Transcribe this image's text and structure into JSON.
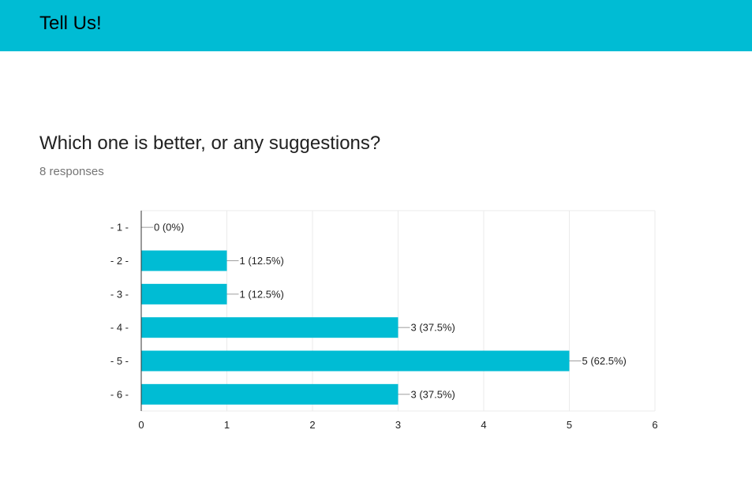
{
  "header": {
    "title": "Tell Us!",
    "background": "#00bcd4"
  },
  "question": {
    "title": "Which one is better, or any suggestions?",
    "responses": "8 responses"
  },
  "chart_data": {
    "type": "bar",
    "orientation": "horizontal",
    "categories": [
      "- 1 -",
      "- 2 -",
      "- 3 -",
      "- 4 -",
      "- 5 -",
      "- 6 -"
    ],
    "values": [
      0,
      1,
      1,
      3,
      5,
      3
    ],
    "data_labels": [
      "0 (0%)",
      "1 (12.5%)",
      "1 (12.5%)",
      "3 (37.5%)",
      "5 (62.5%)",
      "3 (37.5%)"
    ],
    "x_ticks": [
      "0",
      "1",
      "2",
      "3",
      "4",
      "5",
      "6"
    ],
    "xlim": [
      0,
      6
    ],
    "grid": true,
    "bar_color": "#00bcd4"
  }
}
